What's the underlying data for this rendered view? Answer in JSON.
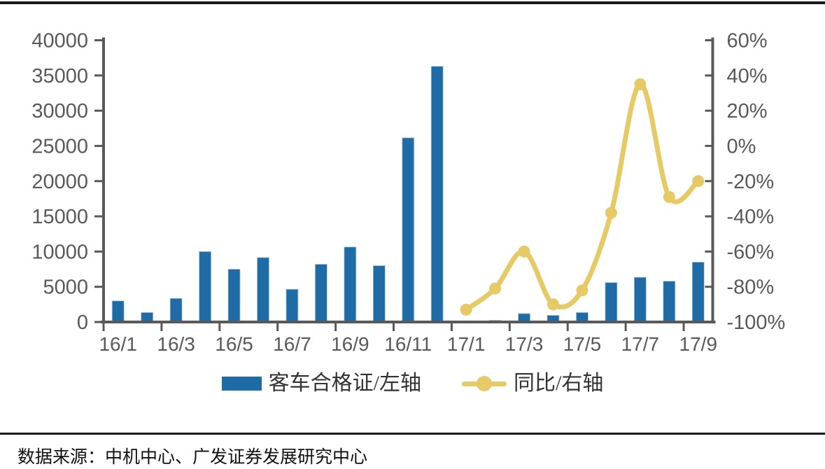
{
  "chart_data": {
    "type": "combo",
    "categories": [
      "16/1",
      "16/2",
      "16/3",
      "16/4",
      "16/5",
      "16/6",
      "16/7",
      "16/8",
      "16/9",
      "16/10",
      "16/11",
      "16/12",
      "17/1",
      "17/2",
      "17/3",
      "17/4",
      "17/5",
      "17/6",
      "17/7",
      "17/8",
      "17/9"
    ],
    "x_tick_label_step": 2,
    "series": [
      {
        "name": "客车合格证/左轴",
        "type": "bar",
        "axis": "left",
        "color": "#1f6ba6",
        "values": [
          3000,
          1350,
          3350,
          10000,
          7500,
          9150,
          4650,
          8200,
          10650,
          8000,
          26150,
          36300,
          150,
          250,
          1200,
          950,
          1350,
          5600,
          6350,
          5800,
          8500
        ]
      },
      {
        "name": "同比/右轴",
        "type": "line",
        "axis": "right",
        "color": "#e6ca66",
        "smooth": true,
        "values": [
          null,
          null,
          null,
          null,
          null,
          null,
          null,
          null,
          null,
          null,
          null,
          null,
          -93,
          -81,
          -60,
          -90,
          -82,
          -38,
          35,
          -29,
          -20
        ]
      }
    ],
    "left_axis": {
      "min": 0,
      "max": 40000,
      "step": 5000,
      "format": "number"
    },
    "right_axis": {
      "min": -100,
      "max": 60,
      "step": 20,
      "format": "percent"
    },
    "grid": false,
    "legend_position": "bottom",
    "title": ""
  },
  "legend": {
    "bar_label": "客车合格证/左轴",
    "line_label": "同比/右轴"
  },
  "footer": {
    "source": "数据来源：中机中心、广发证券发展研究中心"
  },
  "colors": {
    "bar": "#1f6ba6",
    "line": "#e6ca66",
    "axis": "#595959",
    "rule": "#1a1a1a"
  }
}
